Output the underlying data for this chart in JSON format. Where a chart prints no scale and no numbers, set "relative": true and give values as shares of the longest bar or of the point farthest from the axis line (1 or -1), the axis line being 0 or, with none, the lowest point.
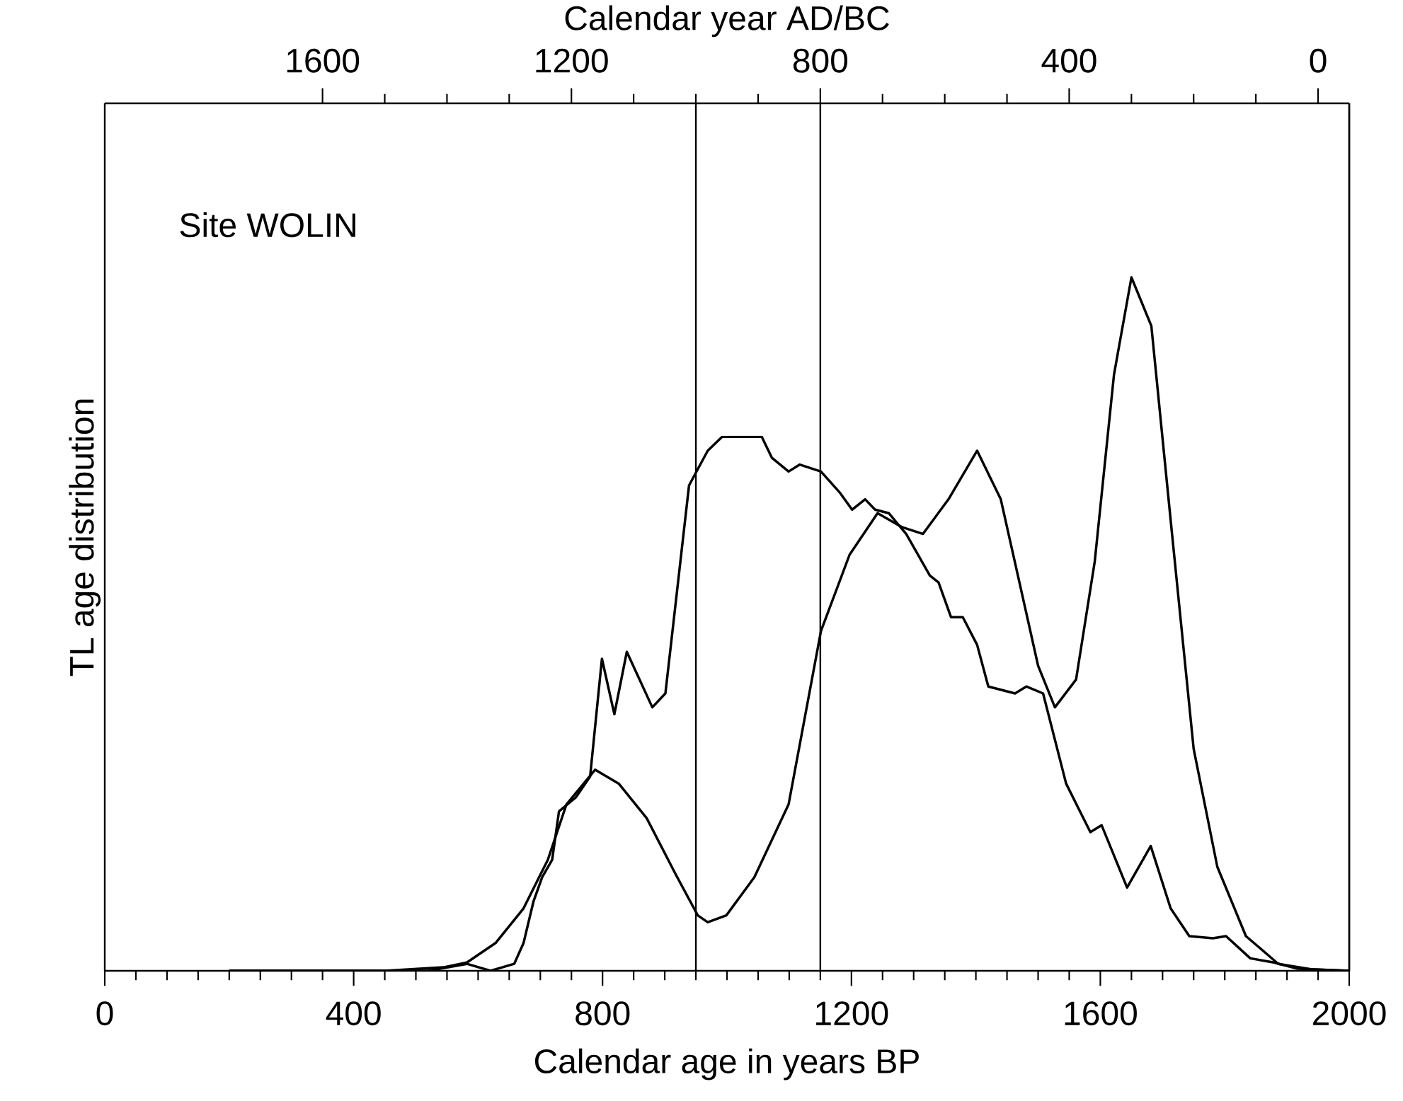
{
  "chart_data": {
    "type": "line",
    "relative": true,
    "xlabel": "Calendar age in years BP",
    "ylabel": "TL age distribution",
    "x2label": "Calendar year AD/BC",
    "xlim": [
      0,
      2000
    ],
    "xticks": [
      0,
      400,
      800,
      1200,
      1600,
      2000
    ],
    "x2lim": [
      1950,
      -50
    ],
    "x2ticks": [
      1600,
      1200,
      800,
      400,
      0
    ],
    "line_style": "solid",
    "annotations": [
      "Site WOLIN"
    ],
    "ref_lines": [
      {
        "axis": "x",
        "value": 950,
        "color": "#000000"
      },
      {
        "axis": "x",
        "value": 1150,
        "color": "#000000"
      }
    ],
    "series": [
      {
        "color": "#000000",
        "x": [
          200,
          450,
          544,
          582,
          628,
          673,
          712,
          742,
          788,
          826,
          871,
          917,
          953,
          969,
          999,
          1044,
          1099,
          1151,
          1197,
          1242,
          1281,
          1315,
          1356,
          1402,
          1440,
          1470,
          1500,
          1527,
          1561,
          1591,
          1622,
          1650,
          1682,
          1713,
          1750,
          1788,
          1834,
          1886,
          1940,
          2000
        ],
        "values": [
          0,
          0,
          0.005,
          0.012,
          0.04,
          0.09,
          0.16,
          0.24,
          0.29,
          0.27,
          0.22,
          0.14,
          0.08,
          0.07,
          0.08,
          0.135,
          0.24,
          0.49,
          0.6,
          0.66,
          0.64,
          0.63,
          0.68,
          0.75,
          0.68,
          0.56,
          0.44,
          0.38,
          0.42,
          0.59,
          0.86,
          1.0,
          0.93,
          0.65,
          0.32,
          0.15,
          0.05,
          0.01,
          0.002,
          0
        ]
      },
      {
        "color": "#000000",
        "x": [
          200,
          520,
          582,
          620,
          658,
          673,
          689,
          703,
          719,
          730,
          757,
          780,
          799,
          819,
          839,
          880,
          901,
          939,
          969,
          992,
          1056,
          1072,
          1099,
          1117,
          1151,
          1181,
          1201,
          1222,
          1238,
          1260,
          1288,
          1326,
          1340,
          1360,
          1379,
          1402,
          1420,
          1463,
          1481,
          1508,
          1545,
          1584,
          1602,
          1643,
          1681,
          1713,
          1743,
          1781,
          1802,
          1841,
          1879,
          1917,
          2000
        ],
        "values": [
          0,
          0,
          0.01,
          0,
          0.01,
          0.04,
          0.1,
          0.135,
          0.16,
          0.23,
          0.25,
          0.28,
          0.45,
          0.37,
          0.46,
          0.38,
          0.4,
          0.7,
          0.75,
          0.77,
          0.77,
          0.74,
          0.72,
          0.73,
          0.72,
          0.69,
          0.665,
          0.68,
          0.665,
          0.66,
          0.63,
          0.57,
          0.56,
          0.51,
          0.51,
          0.47,
          0.41,
          0.4,
          0.41,
          0.4,
          0.27,
          0.2,
          0.21,
          0.12,
          0.18,
          0.09,
          0.05,
          0.047,
          0.05,
          0.018,
          0.012,
          0.003,
          0
        ]
      }
    ]
  }
}
